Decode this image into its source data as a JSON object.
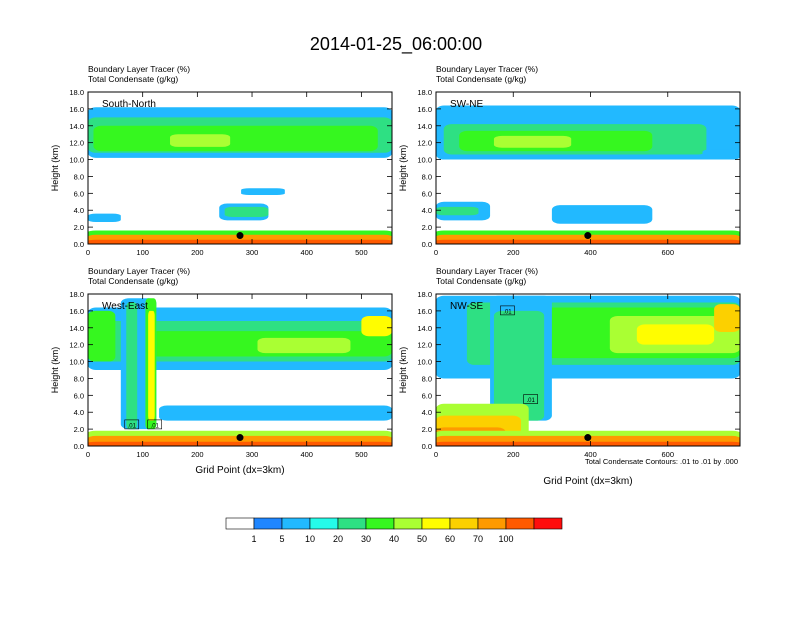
{
  "title": "2014-01-25_06:00:00",
  "chart_data": {
    "type": "heatmap",
    "panels": [
      {
        "id": "sn",
        "header_line1": "Boundary Layer Tracer   (%)",
        "header_line2": "Total Condensate   (g/kg)",
        "label": "South-North",
        "ylabel": "Height (km)",
        "xlabel": "",
        "xlim": [
          0,
          556
        ],
        "ylim": [
          0,
          18
        ],
        "xticks": [
          "0",
          "100",
          "200",
          "300",
          "400",
          "500"
        ],
        "yticks": [
          "0.0",
          "2.0",
          "4.0",
          "6.0",
          "8.0",
          "10.0",
          "12.0",
          "14.0",
          "16.0",
          "18.0"
        ],
        "marker": {
          "x": 278,
          "y": 1.0
        },
        "contour_labels": [],
        "blobs": [
          {
            "x": [
              0,
              556
            ],
            "y": [
              10.2,
              16.2
            ],
            "v": 5
          },
          {
            "x": [
              0,
              556
            ],
            "y": [
              10.8,
              15.0
            ],
            "v": 20
          },
          {
            "x": [
              10,
              530
            ],
            "y": [
              11.0,
              14.0
            ],
            "v": 30
          },
          {
            "x": [
              150,
              260
            ],
            "y": [
              11.5,
              13.0
            ],
            "v": 40
          },
          {
            "x": [
              240,
              330
            ],
            "y": [
              2.8,
              4.8
            ],
            "v": 5
          },
          {
            "x": [
              250,
              330
            ],
            "y": [
              3.2,
              4.4
            ],
            "v": 20
          },
          {
            "x": [
              280,
              360
            ],
            "y": [
              5.8,
              6.6
            ],
            "v": 5
          },
          {
            "x": [
              0,
              60
            ],
            "y": [
              2.6,
              3.6
            ],
            "v": 5
          },
          {
            "x": [
              0,
              556
            ],
            "y": [
              0.8,
              1.6
            ],
            "v": 30
          },
          {
            "x": [
              0,
              556
            ],
            "y": [
              0.0,
              1.1
            ],
            "v": 70
          },
          {
            "x": [
              0,
              556
            ],
            "y": [
              0.0,
              0.5
            ],
            "v": 100
          }
        ]
      },
      {
        "id": "swne",
        "header_line1": "Boundary Layer Tracer   (%)",
        "header_line2": "Total Condensate   (g/kg)",
        "label": "SW-NE",
        "ylabel": "Height (km)",
        "xlabel": "",
        "xlim": [
          0,
          787
        ],
        "ylim": [
          0,
          18
        ],
        "xticks": [
          "0",
          "200",
          "400",
          "600"
        ],
        "yticks": [
          "0.0",
          "2.0",
          "4.0",
          "6.0",
          "8.0",
          "10.0",
          "12.0",
          "14.0",
          "16.0",
          "18.0"
        ],
        "marker": {
          "x": 393,
          "y": 1.0
        },
        "contour_labels": [],
        "blobs": [
          {
            "x": [
              0,
              787
            ],
            "y": [
              10.0,
              16.4
            ],
            "v": 5
          },
          {
            "x": [
              20,
              700
            ],
            "y": [
              10.6,
              14.2
            ],
            "v": 20
          },
          {
            "x": [
              60,
              560
            ],
            "y": [
              11.0,
              13.4
            ],
            "v": 30
          },
          {
            "x": [
              150,
              350
            ],
            "y": [
              11.4,
              12.8
            ],
            "v": 40
          },
          {
            "x": [
              0,
              140
            ],
            "y": [
              2.8,
              5.0
            ],
            "v": 5
          },
          {
            "x": [
              0,
              110
            ],
            "y": [
              3.4,
              4.4
            ],
            "v": 20
          },
          {
            "x": [
              300,
              560
            ],
            "y": [
              2.4,
              4.6
            ],
            "v": 5
          },
          {
            "x": [
              690,
              787
            ],
            "y": [
              10.0,
              11.2
            ],
            "v": 5
          },
          {
            "x": [
              0,
              787
            ],
            "y": [
              0.8,
              1.6
            ],
            "v": 30
          },
          {
            "x": [
              0,
              787
            ],
            "y": [
              0.0,
              1.1
            ],
            "v": 70
          },
          {
            "x": [
              0,
              787
            ],
            "y": [
              0.0,
              0.5
            ],
            "v": 100
          }
        ]
      },
      {
        "id": "we",
        "header_line1": "Boundary Layer Tracer   (%)",
        "header_line2": "Total Condensate   (g/kg)",
        "label": "West-East",
        "ylabel": "Height (km)",
        "xlabel": "Grid Point (dx=3km)",
        "xlim": [
          0,
          556
        ],
        "ylim": [
          0,
          18
        ],
        "xticks": [
          "0",
          "100",
          "200",
          "300",
          "400",
          "500"
        ],
        "yticks": [
          "0.0",
          "2.0",
          "4.0",
          "6.0",
          "8.0",
          "10.0",
          "12.0",
          "14.0",
          "16.0",
          "18.0"
        ],
        "marker": {
          "x": 278,
          "y": 1.0
        },
        "contour_labels": [
          {
            "text": ".01",
            "x": 80,
            "y": 2.5
          },
          {
            "text": ".01",
            "x": 122,
            "y": 2.5
          }
        ],
        "blobs": [
          {
            "x": [
              0,
              556
            ],
            "y": [
              9.0,
              16.4
            ],
            "v": 5
          },
          {
            "x": [
              0,
              556
            ],
            "y": [
              10.0,
              14.8
            ],
            "v": 20
          },
          {
            "x": [
              100,
              556
            ],
            "y": [
              10.6,
              13.6
            ],
            "v": 30
          },
          {
            "x": [
              310,
              480
            ],
            "y": [
              11.0,
              12.8
            ],
            "v": 40
          },
          {
            "x": [
              500,
              556
            ],
            "y": [
              13.0,
              15.4
            ],
            "v": 50
          },
          {
            "x": [
              0,
              50
            ],
            "y": [
              10.0,
              16.0
            ],
            "v": 30
          },
          {
            "x": [
              60,
              125
            ],
            "y": [
              2.0,
              17.5
            ],
            "v": 5
          },
          {
            "x": [
              70,
              90
            ],
            "y": [
              2.0,
              17.0
            ],
            "v": 20
          },
          {
            "x": [
              105,
              125
            ],
            "y": [
              2.0,
              17.5
            ],
            "v": 30
          },
          {
            "x": [
              110,
              122
            ],
            "y": [
              3.0,
              16.0
            ],
            "v": 50
          },
          {
            "x": [
              130,
              556
            ],
            "y": [
              3.0,
              4.8
            ],
            "v": 5
          },
          {
            "x": [
              0,
              556
            ],
            "y": [
              0.8,
              1.8
            ],
            "v": 40
          },
          {
            "x": [
              0,
              556
            ],
            "y": [
              0.0,
              1.2
            ],
            "v": 70
          },
          {
            "x": [
              0,
              556
            ],
            "y": [
              0.0,
              0.5
            ],
            "v": 100
          }
        ]
      },
      {
        "id": "nwse",
        "header_line1": "Boundary Layer Tracer   (%)",
        "header_line2": "Total Condensate   (g/kg)",
        "label": "NW-SE",
        "ylabel": "Height (km)",
        "xlabel": "Grid Point (dx=3km)",
        "xlim": [
          0,
          787
        ],
        "ylim": [
          0,
          18
        ],
        "xticks": [
          "0",
          "200",
          "400",
          "600"
        ],
        "yticks": [
          "0.0",
          "2.0",
          "4.0",
          "6.0",
          "8.0",
          "10.0",
          "12.0",
          "14.0",
          "16.0",
          "18.0"
        ],
        "marker": {
          "x": 393,
          "y": 1.0
        },
        "contour_labels": [
          {
            "text": ".01",
            "x": 185,
            "y": 16.0
          },
          {
            "text": ".01",
            "x": 245,
            "y": 5.5
          }
        ],
        "blobs": [
          {
            "x": [
              0,
              787
            ],
            "y": [
              8.0,
              17.8
            ],
            "v": 5
          },
          {
            "x": [
              80,
              787
            ],
            "y": [
              9.6,
              17.0
            ],
            "v": 20
          },
          {
            "x": [
              250,
              787
            ],
            "y": [
              10.4,
              16.4
            ],
            "v": 30
          },
          {
            "x": [
              450,
              787
            ],
            "y": [
              11.0,
              15.4
            ],
            "v": 40
          },
          {
            "x": [
              520,
              720
            ],
            "y": [
              12.0,
              14.4
            ],
            "v": 50
          },
          {
            "x": [
              720,
              787
            ],
            "y": [
              13.5,
              16.8
            ],
            "v": 60
          },
          {
            "x": [
              140,
              300
            ],
            "y": [
              3.0,
              17.8
            ],
            "v": 5
          },
          {
            "x": [
              150,
              280
            ],
            "y": [
              3.0,
              16.0
            ],
            "v": 20
          },
          {
            "x": [
              0,
              240
            ],
            "y": [
              0.0,
              5.0
            ],
            "v": 40
          },
          {
            "x": [
              0,
              220
            ],
            "y": [
              0.0,
              3.6
            ],
            "v": 60
          },
          {
            "x": [
              0,
              180
            ],
            "y": [
              0.0,
              2.2
            ],
            "v": 70
          },
          {
            "x": [
              0,
              787
            ],
            "y": [
              0.8,
              1.8
            ],
            "v": 40
          },
          {
            "x": [
              0,
              787
            ],
            "y": [
              0.0,
              1.2
            ],
            "v": 70
          },
          {
            "x": [
              0,
              787
            ],
            "y": [
              0.0,
              0.5
            ],
            "v": 100
          }
        ]
      }
    ],
    "contour_info": "Total Condensate Contours: .01 to .01 by .000",
    "colorbar": {
      "colors": [
        "#ffffff",
        "#1f86ff",
        "#22b9ff",
        "#25fbe9",
        "#2ee083",
        "#36f71f",
        "#aaff33",
        "#fffd00",
        "#fcd000",
        "#fe9a00",
        "#ff5a00",
        "#ff0d0d"
      ],
      "labels": [
        "1",
        "5",
        "10",
        "20",
        "30",
        "40",
        "50",
        "60",
        "70",
        "100"
      ]
    }
  }
}
